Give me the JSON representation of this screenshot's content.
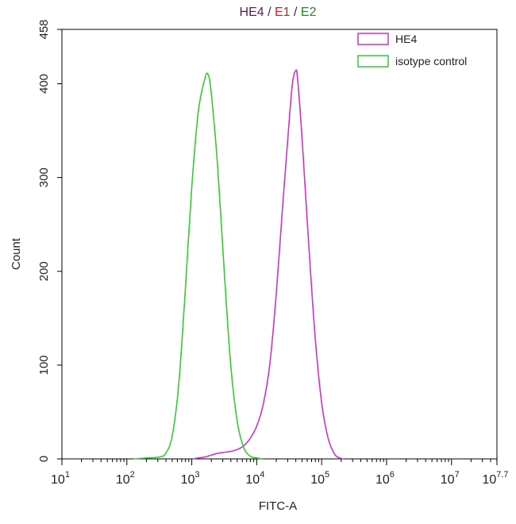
{
  "chart_data": {
    "type": "line",
    "title_parts": [
      {
        "text": "HE4",
        "color": "#5a1f5a"
      },
      {
        "text": " / ",
        "color": "#333333"
      },
      {
        "text": "E1",
        "color": "#cc2222"
      },
      {
        "text": " / ",
        "color": "#333333"
      },
      {
        "text": "E2",
        "color": "#228822"
      }
    ],
    "xlabel": "FITC-A",
    "ylabel": "Count",
    "x_scale": "log10",
    "xlim": [
      1,
      7.7
    ],
    "ylim": [
      0,
      458
    ],
    "x_ticks": [
      {
        "pos": 1,
        "base": "10",
        "exp": "1"
      },
      {
        "pos": 2,
        "base": "10",
        "exp": "2"
      },
      {
        "pos": 3,
        "base": "10",
        "exp": "3"
      },
      {
        "pos": 4,
        "base": "10",
        "exp": "4"
      },
      {
        "pos": 5,
        "base": "10",
        "exp": "5"
      },
      {
        "pos": 6,
        "base": "10",
        "exp": "6"
      },
      {
        "pos": 7,
        "base": "10",
        "exp": "7"
      },
      {
        "pos": 7.7,
        "base": "10",
        "exp": "7.7"
      }
    ],
    "y_ticks": [
      0,
      100,
      200,
      300,
      400,
      458
    ],
    "grid": false,
    "legend_position": "top-right",
    "series": [
      {
        "name": "HE4",
        "color": "#cc33cc",
        "points": [
          [
            3.02,
            0
          ],
          [
            3.1,
            1
          ],
          [
            3.2,
            2
          ],
          [
            3.3,
            4
          ],
          [
            3.4,
            6
          ],
          [
            3.5,
            7
          ],
          [
            3.6,
            8
          ],
          [
            3.7,
            10
          ],
          [
            3.8,
            14
          ],
          [
            3.9,
            22
          ],
          [
            4.0,
            35
          ],
          [
            4.1,
            58
          ],
          [
            4.2,
            100
          ],
          [
            4.3,
            175
          ],
          [
            4.4,
            270
          ],
          [
            4.5,
            360
          ],
          [
            4.55,
            400
          ],
          [
            4.6,
            414
          ],
          [
            4.63,
            405
          ],
          [
            4.7,
            340
          ],
          [
            4.8,
            230
          ],
          [
            4.9,
            130
          ],
          [
            5.0,
            60
          ],
          [
            5.1,
            22
          ],
          [
            5.2,
            5
          ],
          [
            5.28,
            1
          ],
          [
            5.35,
            0
          ]
        ]
      },
      {
        "name": "isotype control",
        "color": "#33cc33",
        "points": [
          [
            2.1,
            0
          ],
          [
            2.3,
            1
          ],
          [
            2.5,
            2
          ],
          [
            2.6,
            6
          ],
          [
            2.7,
            25
          ],
          [
            2.8,
            80
          ],
          [
            2.9,
            180
          ],
          [
            3.0,
            290
          ],
          [
            3.1,
            370
          ],
          [
            3.2,
            405
          ],
          [
            3.25,
            410
          ],
          [
            3.3,
            390
          ],
          [
            3.4,
            310
          ],
          [
            3.5,
            200
          ],
          [
            3.6,
            100
          ],
          [
            3.7,
            40
          ],
          [
            3.8,
            12
          ],
          [
            3.9,
            3
          ],
          [
            4.0,
            1
          ],
          [
            4.1,
            0
          ]
        ]
      }
    ]
  }
}
